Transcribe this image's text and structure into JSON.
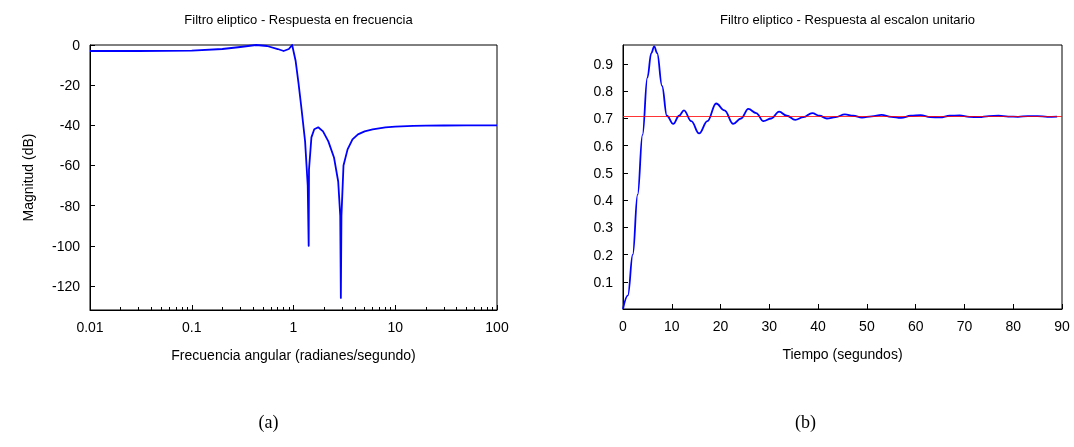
{
  "chart_data": [
    {
      "type": "line",
      "title": "Filtro eliptico - Respuesta en frecuencia",
      "xlabel": "Frecuencia angular (radianes/segundo)",
      "ylabel": "Magnitud (dB)",
      "log": "x",
      "xlim": [
        0.01,
        100
      ],
      "xticks": [
        0.01,
        0.1,
        1,
        10,
        100
      ],
      "ylim": [
        -132,
        0
      ],
      "yticks": [
        0,
        -20,
        -40,
        -60,
        -80,
        -100,
        -120
      ],
      "grid": false,
      "annotations": [
        "(a)"
      ],
      "series": [
        {
          "color": "#0000ff",
          "x": [
            0.01,
            0.03,
            0.1,
            0.2,
            0.3,
            0.43,
            0.55,
            0.7,
            0.8,
            0.9,
            0.97,
            1.05,
            1.12,
            1.2,
            1.3,
            1.38,
            1.41,
            1.42,
            1.5,
            1.6,
            1.75,
            1.95,
            2.2,
            2.5,
            2.75,
            2.88,
            2.92,
            2.96,
            3.1,
            3.4,
            3.8,
            4.3,
            5,
            6,
            8,
            10,
            15,
            20,
            30,
            50,
            100
          ],
          "values": [
            -3,
            -3,
            -2.8,
            -2,
            -1,
            0,
            -0.5,
            -2,
            -3,
            -2,
            0,
            -8,
            -19,
            -32,
            -48,
            -70,
            -100,
            -62,
            -46,
            -42,
            -41,
            -43,
            -48,
            -56,
            -68,
            -85,
            -126,
            -85,
            -60,
            -52,
            -47,
            -44.5,
            -43,
            -42,
            -41,
            -40.7,
            -40.3,
            -40.2,
            -40.1,
            -40,
            -40
          ]
        }
      ]
    },
    {
      "type": "line",
      "title": "Filtro eliptico - Respuesta al escalon unitario",
      "xlabel": "Tiempo (segundos)",
      "xlim": [
        0,
        90
      ],
      "xticks": [
        0,
        10,
        20,
        30,
        40,
        50,
        60,
        70,
        80,
        90
      ],
      "ylim": [
        0,
        0.97
      ],
      "yticks": [
        0.1,
        0.2,
        0.3,
        0.4,
        0.5,
        0.6,
        0.7,
        0.8,
        0.9
      ],
      "grid": false,
      "annotations": [
        "(b)"
      ],
      "ref_lines": [
        {
          "axis": "y",
          "value": 0.707,
          "color": "#ff0000"
        }
      ],
      "series": [
        {
          "color": "#0000ff",
          "x": [
            0,
            1,
            2,
            3,
            4,
            5,
            5.8,
            6.4,
            7,
            8,
            9,
            10.3,
            11.5,
            12.5,
            14,
            15.6,
            17.3,
            19.1,
            20.8,
            22.6,
            24.2,
            25.7,
            27.3,
            28.8,
            30.4,
            32,
            33.6,
            35.3,
            37,
            38.8,
            40.3,
            41.8,
            43.6,
            45.5,
            47.2,
            49,
            51,
            53,
            55,
            57,
            59,
            61,
            63,
            65,
            67,
            69,
            71,
            73,
            75,
            77,
            79,
            81,
            83,
            85,
            87,
            89
          ],
          "values": [
            0,
            0.05,
            0.2,
            0.42,
            0.64,
            0.85,
            0.94,
            0.965,
            0.94,
            0.82,
            0.71,
            0.68,
            0.71,
            0.73,
            0.69,
            0.645,
            0.69,
            0.755,
            0.73,
            0.68,
            0.7,
            0.735,
            0.72,
            0.69,
            0.7,
            0.725,
            0.71,
            0.695,
            0.705,
            0.72,
            0.71,
            0.7,
            0.705,
            0.715,
            0.71,
            0.703,
            0.708,
            0.713,
            0.706,
            0.702,
            0.71,
            0.712,
            0.705,
            0.704,
            0.71,
            0.711,
            0.706,
            0.705,
            0.709,
            0.71,
            0.707,
            0.706,
            0.709,
            0.709,
            0.706,
            0.707
          ]
        }
      ]
    }
  ]
}
